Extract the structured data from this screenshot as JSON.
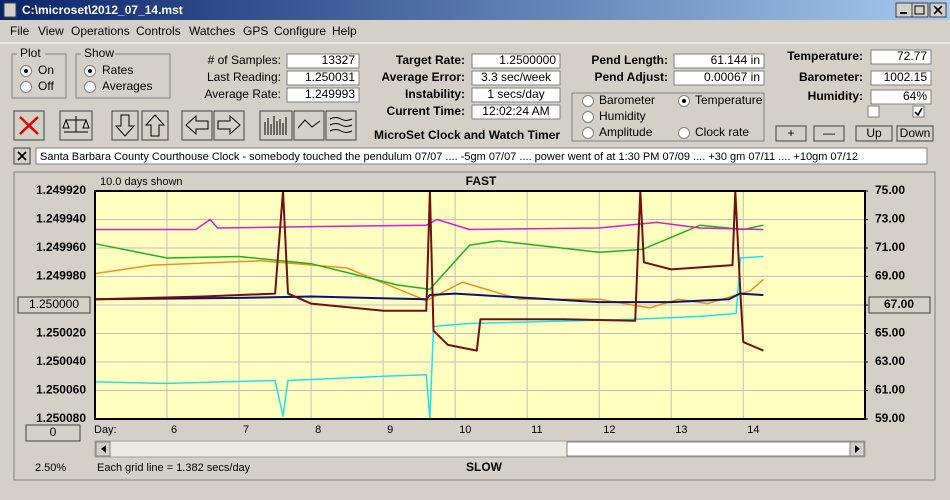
{
  "window": {
    "title": "C:\\microset\\2012_07_14.mst",
    "menu": [
      "File",
      "View",
      "Operations",
      "Controls",
      "Watches",
      "GPS",
      "Configure",
      "Help"
    ]
  },
  "plot": {
    "title": "Plot",
    "options": [
      "On",
      "Off"
    ],
    "selected": 0
  },
  "show": {
    "title": "Show",
    "options": [
      "Rates",
      "Averages"
    ],
    "selected": 0
  },
  "readings": [
    {
      "label": "# of Samples:",
      "value": "13327"
    },
    {
      "label": "Last Reading:",
      "value": "1.250031"
    },
    {
      "label": "Average Rate:",
      "value": "1.249993"
    }
  ],
  "rates": [
    {
      "label": "Target Rate:",
      "value": "1.2500000"
    },
    {
      "label": "Average Error:",
      "value": "3.3 sec/week"
    },
    {
      "label": "Instability:",
      "value": "1 secs/day"
    },
    {
      "label": "Current Time:",
      "value": "12:02:24 AM"
    }
  ],
  "pendulum": [
    {
      "label": "Pend Length:",
      "value": "61.144 in"
    },
    {
      "label": "Pend Adjust:",
      "value": "0.00067 in"
    }
  ],
  "sensors": [
    {
      "label": "Temperature:",
      "value": "72.77"
    },
    {
      "label": "Barometer:",
      "value": "1002.15"
    },
    {
      "label": "Humidity:",
      "value": "64%"
    }
  ],
  "sensor_checks": [
    false,
    true
  ],
  "app_title": "MicroSet Clock and Watch Timer",
  "buttons": [
    "+",
    "—",
    "Up",
    "Down"
  ],
  "notes": "Santa Barbara County Courthouse Clock -  somebody touched the pendulum 07/07  ....  -5gm 07/07  ....  power went of at 1:30 PM 07/09 ....  +30 gm 07/11  ....  +10gm 07/12",
  "chart": {
    "type": "line",
    "span_note": "10.0 days shown",
    "top_label": "FAST",
    "bottom_label": "SLOW",
    "grid_note": "Each grid line = 1.382 secs/day",
    "zoom": "2.50%",
    "offset": "0",
    "x_label": "Day:",
    "xlim": [
      5,
      15.69
    ],
    "xticks": [
      6,
      7,
      8,
      9,
      10,
      11,
      12,
      13,
      14
    ],
    "ylim": [
      1.24992,
      1.25008
    ],
    "y_reversed": true,
    "yticks": [
      {
        "value": 1.24992,
        "label": "1.249920"
      },
      {
        "value": 1.24994,
        "label": "1.249940"
      },
      {
        "value": 1.24996,
        "label": "1.249960"
      },
      {
        "value": 1.24998,
        "label": "1.249980"
      },
      {
        "value": 1.25,
        "label": "1.250000"
      },
      {
        "value": 1.25002,
        "label": "1.250020"
      },
      {
        "value": 1.25004,
        "label": "1.250040"
      },
      {
        "value": 1.25006,
        "label": "1.250060"
      },
      {
        "value": 1.25008,
        "label": "1.250080"
      }
    ],
    "y2lim": [
      59,
      75
    ],
    "y2ticks": [
      {
        "value": 75,
        "label": "75.00"
      },
      {
        "value": 73,
        "label": "73.00"
      },
      {
        "value": 71,
        "label": "71.00"
      },
      {
        "value": 69,
        "label": "69.00"
      },
      {
        "value": 67,
        "label": "67.00"
      },
      {
        "value": 65,
        "label": "65.00"
      },
      {
        "value": 63,
        "label": "63.00"
      },
      {
        "value": 61,
        "label": "61.00"
      },
      {
        "value": 59,
        "label": "59.00"
      }
    ],
    "grid": true,
    "series": [
      {
        "name": "Barometer",
        "color": "#f0901e",
        "axis": "y2",
        "x": [
          5,
          5.8,
          7.3,
          8.5,
          9.6,
          10.1,
          10.9,
          12,
          12.7,
          13.1,
          13.5,
          14.1,
          14.28
        ],
        "values": [
          69.2,
          69.8,
          70.1,
          69.6,
          67.3,
          68.6,
          67.4,
          67.4,
          66.8,
          67.4,
          67.1,
          68.0,
          68.8
        ]
      },
      {
        "name": "Temperature",
        "color": "#20b020",
        "axis": "y2",
        "checked": true,
        "x": [
          5,
          6,
          7,
          8,
          9.2,
          9.65,
          10.2,
          10.6,
          12,
          12.6,
          13.4,
          14,
          14.28
        ],
        "values": [
          71.3,
          70.3,
          70.4,
          69.9,
          68.4,
          68.1,
          71.2,
          71.5,
          70.7,
          70.9,
          72.6,
          72.3,
          72.6
        ]
      },
      {
        "name": "Humidity",
        "color": "#d020d0",
        "axis": "y2",
        "x": [
          5,
          6.4,
          6.6,
          6.7,
          8,
          9.6,
          9.75,
          10.2,
          12,
          12.8,
          13.4,
          14.28
        ],
        "values": [
          72.3,
          72.3,
          73.0,
          72.4,
          72.5,
          72.6,
          73.0,
          72.3,
          72.4,
          72.8,
          72.4,
          72.3
        ]
      },
      {
        "name": "Amplitude",
        "color": "#20e0f0",
        "axis": "y2",
        "x": [
          5,
          6,
          7.5,
          7.61,
          7.68,
          9,
          9.6,
          9.65,
          9.7,
          10.2,
          12.5,
          13.4,
          13.9,
          13.96,
          14.28
        ],
        "values": [
          61.6,
          61.5,
          61.7,
          59.2,
          61.7,
          62.0,
          62.1,
          59.0,
          65.5,
          65.7,
          66.0,
          66.2,
          66.4,
          70.3,
          70.4
        ]
      },
      {
        "color": "#101070",
        "axis": "y",
        "x": [
          5,
          7,
          8,
          9.6,
          9.65,
          10,
          11,
          12,
          13,
          13.8,
          13.95,
          14.28
        ],
        "values": [
          1.249996,
          1.249995,
          1.249994,
          1.249996,
          1.249993,
          1.249992,
          1.249995,
          1.249998,
          1.249998,
          1.249996,
          1.249992,
          1.249993
        ]
      },
      {
        "name": "Clock rate",
        "color": "#701010",
        "axis": "y",
        "x": [
          5,
          6.5,
          7.5,
          7.61,
          7.68,
          8,
          9,
          9.6,
          9.65,
          9.7,
          9.9,
          10.3,
          10.35,
          11.5,
          12.5,
          12.57,
          12.62,
          13,
          13.85,
          13.89,
          13.96,
          14,
          14.28
        ],
        "values": [
          1.249996,
          1.249994,
          1.249992,
          1.24992,
          1.249992,
          1.249999,
          1.250004,
          1.250004,
          1.24992,
          1.250018,
          1.250028,
          1.250032,
          1.25001,
          1.25001,
          1.250011,
          1.24992,
          1.24997,
          1.249975,
          1.249972,
          1.24992,
          1.249992,
          1.250026,
          1.250032
        ]
      }
    ]
  }
}
